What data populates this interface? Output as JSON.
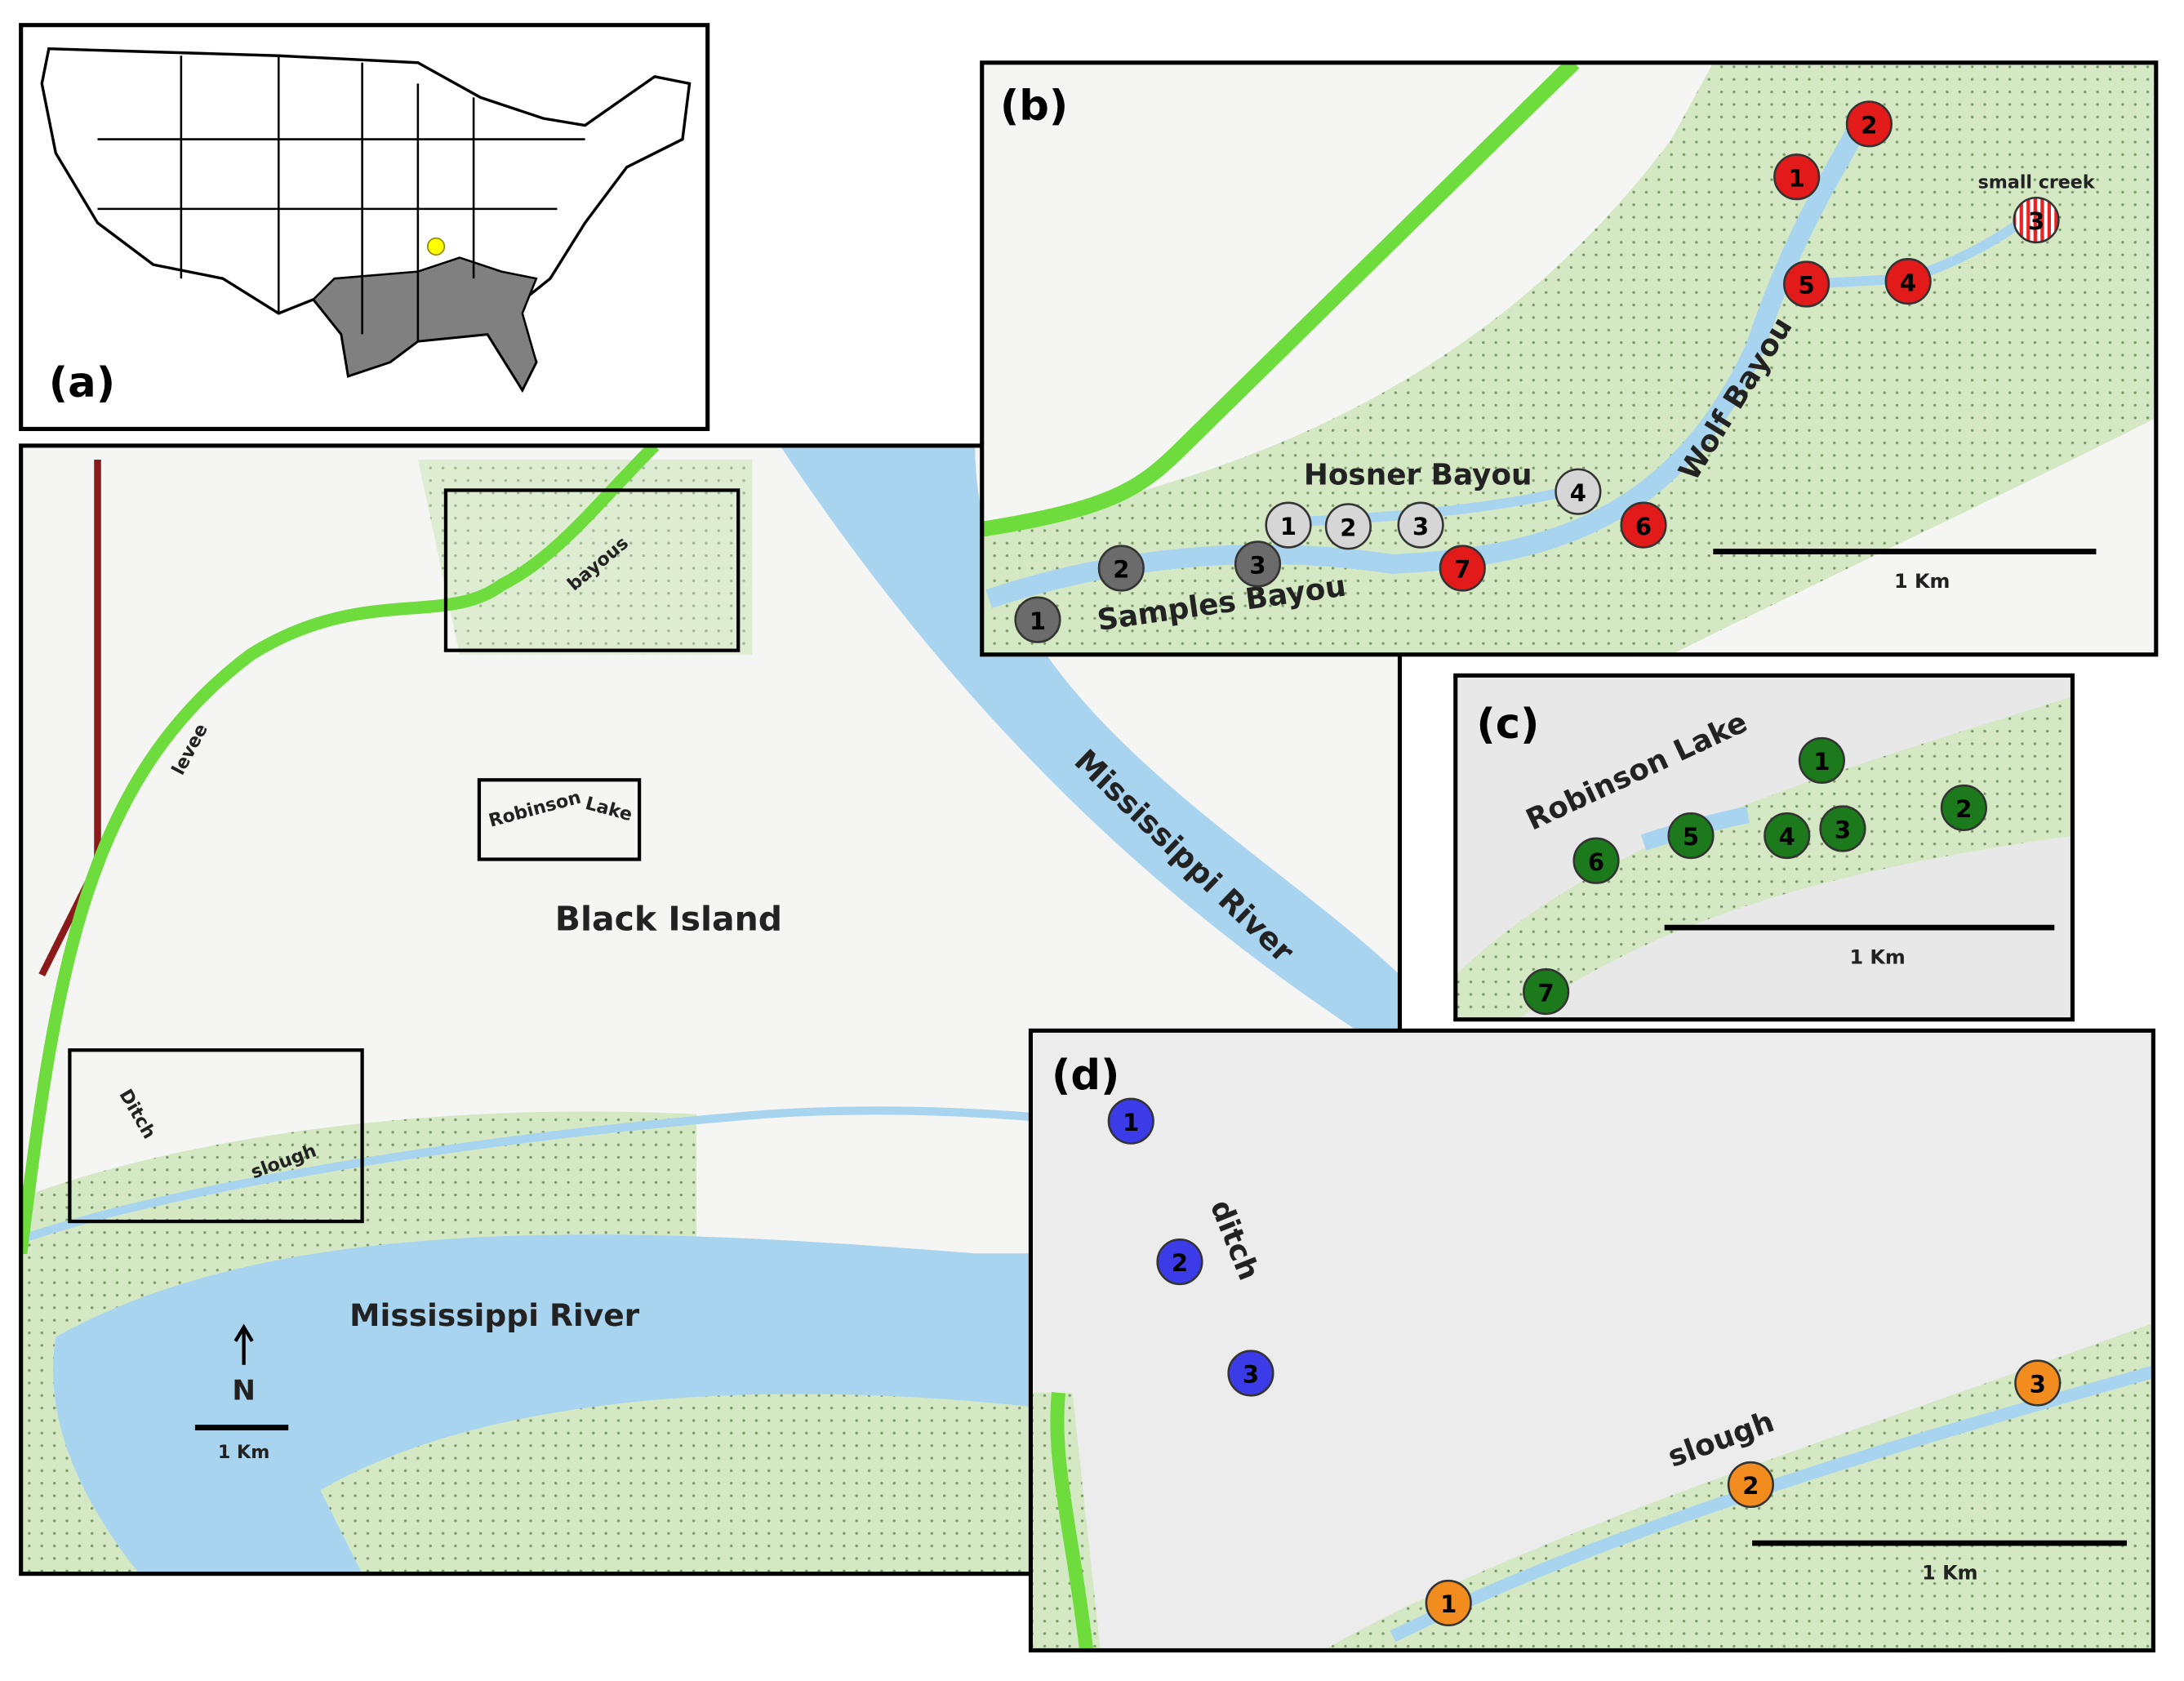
{
  "panel_a": {
    "label": "(a)"
  },
  "main": {
    "levee": "levee",
    "bayous": "bayous",
    "robinson": "Robinson",
    "lake": "Lake",
    "island": "Black Island",
    "river_east": "Mississippi River",
    "river_south": "Mississippi River",
    "ditch": "Ditch",
    "slough": "slough",
    "north": "N",
    "scale": "1 Km"
  },
  "panel_b": {
    "label": "(b)",
    "hosner": "Hosner Bayou",
    "wolf": "Wolf Bayou",
    "samples": "Samples Bayou",
    "creek": "small creek",
    "scale": "1 Km",
    "sites": [
      [
        "1",
        "2",
        "3"
      ],
      [
        "1",
        "2",
        "3",
        "4"
      ],
      [
        "1",
        "2",
        "3",
        "4",
        "5",
        "6",
        "7"
      ]
    ]
  },
  "panel_c": {
    "label": "(c)",
    "lake": "Robinson Lake",
    "scale": "1 Km",
    "sites": [
      [
        "1",
        "2",
        "3",
        "4",
        "5",
        "6",
        "7"
      ]
    ]
  },
  "panel_d": {
    "label": "(d)",
    "ditch": "ditch",
    "slough": "slough",
    "scale": "1 Km",
    "sites": [
      [
        "1",
        "2",
        "3"
      ],
      [
        "1",
        "2",
        "3"
      ]
    ]
  }
}
